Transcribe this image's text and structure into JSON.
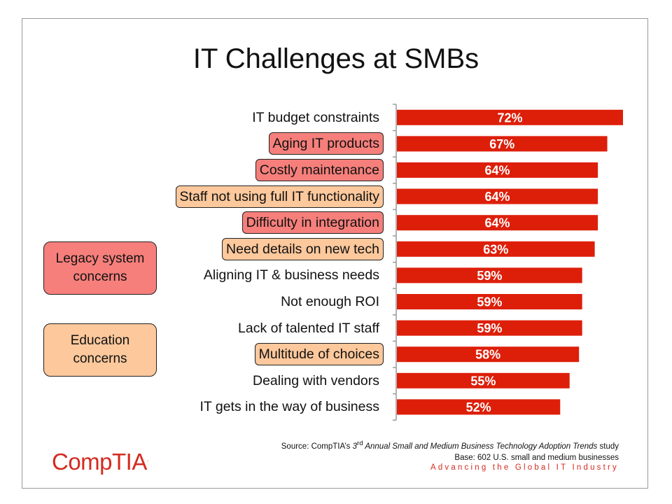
{
  "title": "IT Challenges at SMBs",
  "colors": {
    "bar": "#dd1f0a",
    "legacy": "#f67f7b",
    "education": "#fcc89c",
    "brand": "#d42b20"
  },
  "legend": {
    "legacy": "Legacy system\nconcerns",
    "education": "Education\nconcerns"
  },
  "chart_data": {
    "type": "bar",
    "orientation": "horizontal",
    "categories": [
      "IT budget constraints",
      "Aging IT products",
      "Costly maintenance",
      "Staff not using full IT functionality",
      "Difficulty in integration",
      "Need details on new tech",
      "Aligning IT & business needs",
      "Not enough ROI",
      "Lack of talented IT staff",
      "Multitude of choices",
      "Dealing with vendors",
      "IT gets in the way of business"
    ],
    "values": [
      72,
      67,
      64,
      64,
      64,
      63,
      59,
      59,
      59,
      58,
      55,
      52
    ],
    "value_labels": [
      "72%",
      "67%",
      "64%",
      "64%",
      "64%",
      "63%",
      "59%",
      "59%",
      "59%",
      "58%",
      "55%",
      "52%"
    ],
    "highlight": [
      "none",
      "legacy",
      "legacy",
      "education",
      "legacy",
      "education",
      "none",
      "none",
      "none",
      "education",
      "none",
      "none"
    ],
    "unit": "%",
    "xlim": [
      0,
      72
    ]
  },
  "source": {
    "prefix": "Source: CompTIA’s ",
    "ordinal": "3",
    "ordinal_suffix": "rd",
    "study": " Annual Small and Medium Business Technology Adoption Trends",
    "suffix": " study",
    "base": "Base: 602 U.S. small and medium businesses"
  },
  "tagline": "Advancing the Global IT Industry",
  "logo": {
    "text": "CompTIA",
    "mark": "."
  }
}
